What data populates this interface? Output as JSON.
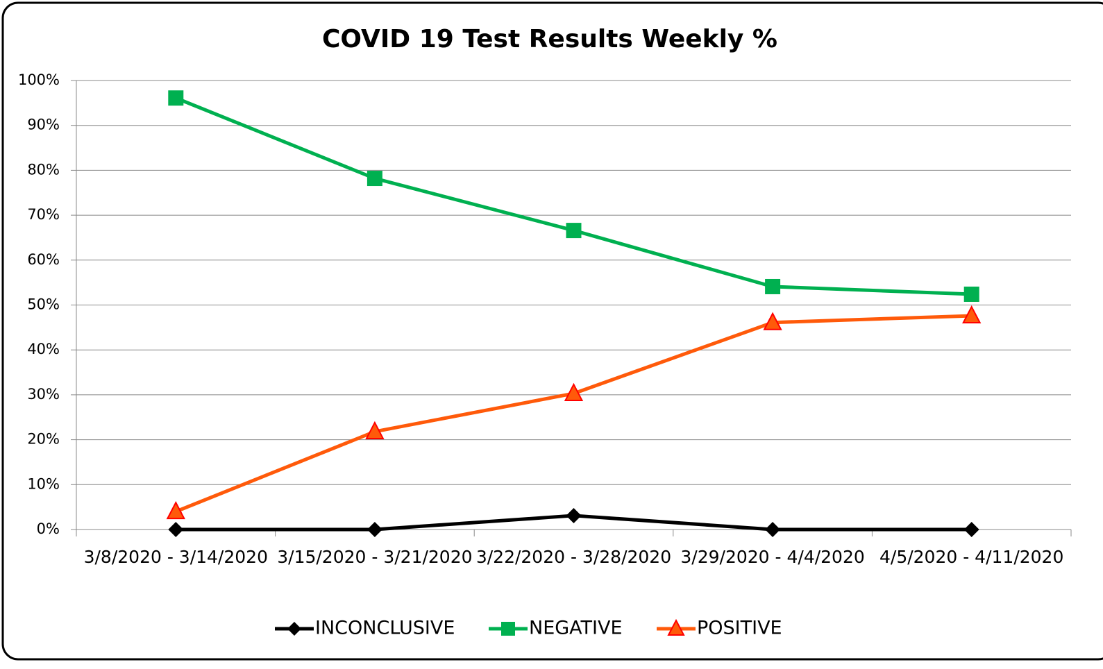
{
  "chart_data": {
    "type": "line",
    "title": "COVID 19 Test Results Weekly %",
    "categories": [
      "3/8/2020 - 3/14/2020",
      "3/15/2020 - 3/21/2020",
      "3/22/2020 - 3/28/2020",
      "3/29/2020 - 4/4/2020",
      "4/5/2020 - 4/11/2020"
    ],
    "series": [
      {
        "name": "INCONCLUSIVE",
        "color": "#000000",
        "marker": "diamond",
        "values": [
          0,
          0,
          3.1,
          0,
          0
        ]
      },
      {
        "name": "NEGATIVE",
        "color": "#00b050",
        "marker": "square",
        "values": [
          96.1,
          78.2,
          66.6,
          54.1,
          52.4
        ]
      },
      {
        "name": "POSITIVE",
        "color": "#ff5a0a",
        "marker": "triangle",
        "values": [
          4.0,
          21.8,
          30.3,
          46.1,
          47.6
        ]
      }
    ],
    "ylim": [
      0,
      100
    ],
    "yticks": [
      {
        "value": 0,
        "label": "0%"
      },
      {
        "value": 10,
        "label": "10%"
      },
      {
        "value": 20,
        "label": "20%"
      },
      {
        "value": 30,
        "label": "30%"
      },
      {
        "value": 40,
        "label": "40%"
      },
      {
        "value": 50,
        "label": "50%"
      },
      {
        "value": 60,
        "label": "60%"
      },
      {
        "value": 70,
        "label": "70%"
      },
      {
        "value": 80,
        "label": "80%"
      },
      {
        "value": 90,
        "label": "90%"
      },
      {
        "value": 100,
        "label": "100%"
      }
    ],
    "grid": true,
    "legend": "bottom"
  }
}
